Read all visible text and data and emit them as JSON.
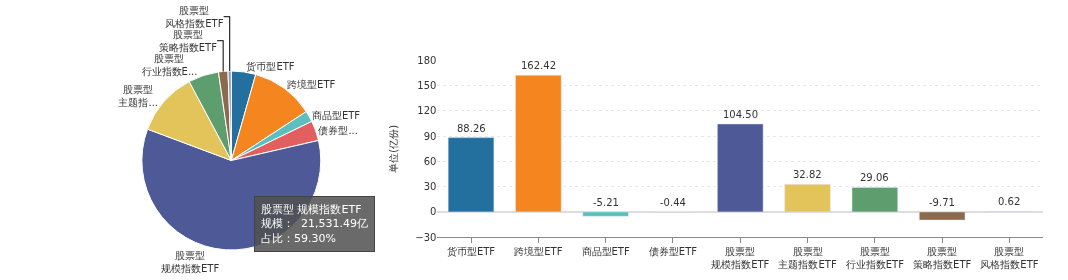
{
  "chart_data": [
    {
      "type": "pie",
      "categories": [
        "货币型ETF",
        "跨境型ETF",
        "商品型ETF",
        "债券型...",
        "股票型规模指数ETF",
        "股票型主题指...",
        "股票型行业指数E...",
        "股票型策略指数ETF",
        "股票型风格指数ETF"
      ],
      "values": [
        4.4,
        11.4,
        2.0,
        3.6,
        59.3,
        11.5,
        5.5,
        1.7,
        0.6
      ],
      "colors": [
        "#23709e",
        "#f5851f",
        "#5bbfc0",
        "#e35f5f",
        "#4e5a98",
        "#e3c45a",
        "#5e9e6e",
        "#8c6a4d",
        "#8ea0c0"
      ],
      "annotations": [
        "股票型 规模指数ETF",
        "规模：  21,531.49亿",
        "占比：59.30%"
      ]
    },
    {
      "type": "bar",
      "categories": [
        "货币型ETF",
        "跨境型ETF",
        "商品型ETF",
        "债券型ETF",
        "股票型规模指数ETF",
        "股票型主题指数ETF",
        "股票型行业指数ETF",
        "股票型策略指数ETF",
        "股票型风格指数ETF"
      ],
      "values": [
        88.26,
        162.42,
        -5.21,
        -0.44,
        104.5,
        32.82,
        29.06,
        -9.71,
        0.62
      ],
      "value_labels": [
        "88.26",
        "162.42",
        "-5.21",
        "-0.44",
        "104.50",
        "32.82",
        "29.06",
        "-9.71",
        "0.62"
      ],
      "colors": [
        "#23709e",
        "#f5851f",
        "#5bbfc0",
        "#e35f5f",
        "#4e5a98",
        "#e3c45a",
        "#5e9e6e",
        "#8c6a4d",
        "#8ea0c0"
      ],
      "ylabel": "单位(亿份)",
      "ylim": [
        -30,
        180
      ],
      "yticks": [
        -30,
        0,
        30,
        60,
        90,
        120,
        150,
        180
      ],
      "grid": "y"
    }
  ]
}
